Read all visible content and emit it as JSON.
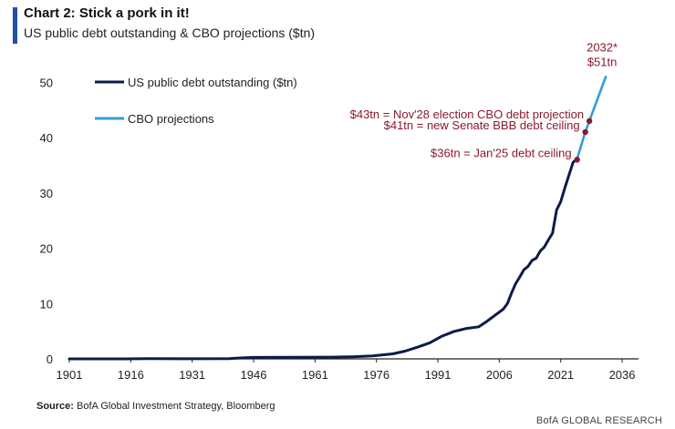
{
  "header": {
    "title": "Chart 2: Stick a pork in it!",
    "subtitle": "US public debt outstanding & CBO projections ($tn)"
  },
  "footer": {
    "source_label": "Source:",
    "source_text": "BofA Global Investment Strategy, Bloomberg",
    "brand": "BofA GLOBAL RESEARCH"
  },
  "colors": {
    "debt": "#0d1b4a",
    "cbo": "#2e9fd8",
    "annotation": "#8b1a2b",
    "title_bar": "#1f4fa8"
  },
  "chart_data": {
    "type": "line",
    "xlim": [
      1901,
      2040
    ],
    "ylim": [
      0,
      55
    ],
    "x_ticks": [
      "1901",
      "1916",
      "1931",
      "1946",
      "1961",
      "1976",
      "1991",
      "2006",
      "2021",
      "2036"
    ],
    "y_ticks": [
      "0",
      "10",
      "20",
      "30",
      "40",
      "50"
    ],
    "legend_position": "top-left",
    "grid": false,
    "series": [
      {
        "name": "US public debt outstanding ($tn)",
        "color": "#0d1b4a",
        "points": [
          [
            1901,
            0.0
          ],
          [
            1915,
            0.0
          ],
          [
            1920,
            0.03
          ],
          [
            1930,
            0.02
          ],
          [
            1940,
            0.05
          ],
          [
            1944,
            0.2
          ],
          [
            1946,
            0.27
          ],
          [
            1955,
            0.28
          ],
          [
            1965,
            0.32
          ],
          [
            1970,
            0.38
          ],
          [
            1975,
            0.53
          ],
          [
            1980,
            0.9
          ],
          [
            1983,
            1.4
          ],
          [
            1986,
            2.1
          ],
          [
            1989,
            2.9
          ],
          [
            1992,
            4.1
          ],
          [
            1995,
            4.97
          ],
          [
            1998,
            5.5
          ],
          [
            2001,
            5.8
          ],
          [
            2003,
            6.8
          ],
          [
            2005,
            7.9
          ],
          [
            2007,
            9.0
          ],
          [
            2008,
            10.0
          ],
          [
            2009,
            11.9
          ],
          [
            2010,
            13.6
          ],
          [
            2011,
            14.8
          ],
          [
            2012,
            16.1
          ],
          [
            2013,
            16.7
          ],
          [
            2014,
            17.8
          ],
          [
            2015,
            18.2
          ],
          [
            2016,
            19.5
          ],
          [
            2017,
            20.2
          ],
          [
            2018,
            21.5
          ],
          [
            2019,
            22.7
          ],
          [
            2020,
            26.9
          ],
          [
            2021,
            28.4
          ],
          [
            2022,
            30.9
          ],
          [
            2023,
            33.2
          ],
          [
            2024,
            35.5
          ],
          [
            2025,
            36.2
          ]
        ]
      },
      {
        "name": "CBO projections",
        "color": "#2e9fd8",
        "points": [
          [
            2025,
            36.2
          ],
          [
            2026,
            38.6
          ],
          [
            2027,
            41.0
          ],
          [
            2028,
            43.0
          ],
          [
            2029,
            45.0
          ],
          [
            2030,
            47.0
          ],
          [
            2031,
            49.0
          ],
          [
            2032,
            51.0
          ]
        ]
      }
    ],
    "annotations": [
      {
        "text": "$43tn = Nov'28 election CBO debt projection",
        "x": 2028,
        "y": 43
      },
      {
        "text": "$41tn = new Senate BBB debt ceiling",
        "x": 2027,
        "y": 41
      },
      {
        "text": "$36tn = Jan'25 debt ceiling",
        "x": 2025,
        "y": 36
      }
    ],
    "endpoint_label": {
      "line1": "2032*",
      "line2": "$51tn",
      "x": 2032,
      "y": 51
    }
  }
}
